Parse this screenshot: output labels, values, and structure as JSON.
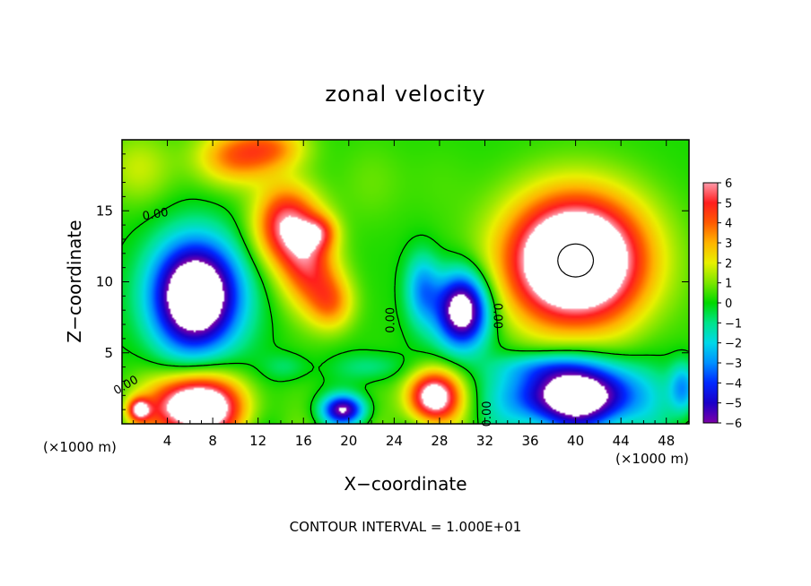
{
  "chart_data": {
    "type": "heatmap",
    "title": "zonal velocity",
    "xlabel": "X−coordinate",
    "ylabel": "Z−coordinate",
    "x_unit_left": "(×1000 m)",
    "x_unit_right": "(×1000 m)",
    "footer": "CONTOUR INTERVAL = 1.000E+01",
    "xlim": [
      0,
      50
    ],
    "ylim": [
      0,
      20
    ],
    "x_ticks": [
      4,
      8,
      12,
      16,
      20,
      24,
      28,
      32,
      36,
      40,
      44,
      48
    ],
    "x_tick_labels": [
      "4",
      "8",
      "12",
      "16",
      "20",
      "24",
      "28",
      "32",
      "36",
      "40",
      "44",
      "48"
    ],
    "y_ticks": [
      5,
      10,
      15
    ],
    "y_tick_labels": [
      "5",
      "10",
      "15"
    ],
    "colorbar": {
      "labels": [
        "6",
        "5",
        "4",
        "3",
        "2",
        "1",
        "0",
        "−1",
        "−2",
        "−3",
        "−4",
        "−5",
        "−6"
      ],
      "range": [
        -6,
        6
      ],
      "stops": [
        {
          "v": -6,
          "c": "#7c00a8"
        },
        {
          "v": -5,
          "c": "#1a00c8"
        },
        {
          "v": -4,
          "c": "#0028ff"
        },
        {
          "v": -3,
          "c": "#0090ff"
        },
        {
          "v": -2,
          "c": "#00d8e8"
        },
        {
          "v": -1,
          "c": "#00e48a"
        },
        {
          "v": 0,
          "c": "#00d800"
        },
        {
          "v": 1,
          "c": "#7ce600"
        },
        {
          "v": 2,
          "c": "#e8f000"
        },
        {
          "v": 3,
          "c": "#ffb400"
        },
        {
          "v": 4,
          "c": "#ff5a00"
        },
        {
          "v": 5,
          "c": "#ff1e1e"
        },
        {
          "v": 6,
          "c": "#ff9aaa"
        }
      ],
      "over_color": "#ffffff",
      "under_color": "#ffffff"
    },
    "contour_labels": [
      {
        "text": "0.00",
        "x": 3,
        "z": 14.5,
        "angle": -10
      },
      {
        "text": "0.00",
        "x": 0.5,
        "z": 2.5,
        "angle": -30
      },
      {
        "text": "0.00",
        "x": 24.0,
        "z": 7.3,
        "angle": -90
      },
      {
        "text": "0.00",
        "x": 32.8,
        "z": 7.6,
        "angle": 90
      },
      {
        "text": "0.00",
        "x": 32.5,
        "z": 0.7,
        "angle": -90
      }
    ],
    "features": [
      {
        "x": 1.5,
        "z": 18.0,
        "sx": 3.0,
        "sz": 2.5,
        "a": 1.5
      },
      {
        "x": 10.0,
        "z": 18.8,
        "sx": 3.5,
        "sz": 2.0,
        "a": 3.5
      },
      {
        "x": 13.5,
        "z": 19.5,
        "sx": 3.0,
        "sz": 1.5,
        "a": 2.5
      },
      {
        "x": 14.5,
        "z": 14.0,
        "sx": 2.8,
        "sz": 2.8,
        "a": 5.5
      },
      {
        "x": 16.5,
        "z": 11.0,
        "sx": 2.5,
        "sz": 3.0,
        "a": 4.0
      },
      {
        "x": 18.5,
        "z": 8.5,
        "sx": 2.0,
        "sz": 2.0,
        "a": 3.0
      },
      {
        "x": 17.5,
        "z": 13.5,
        "sx": 1.5,
        "sz": 1.2,
        "a": 2.5
      },
      {
        "x": 6.5,
        "z": 9.0,
        "sx": 3.8,
        "sz": 3.8,
        "a": -9.5
      },
      {
        "x": 6.5,
        "z": 1.2,
        "sx": 4.0,
        "sz": 2.2,
        "a": 9.0
      },
      {
        "x": 1.5,
        "z": 1.0,
        "sx": 1.0,
        "sz": 0.8,
        "a": 5.0
      },
      {
        "x": 27.5,
        "z": 1.9,
        "sx": 2.3,
        "sz": 1.8,
        "a": 7.5
      },
      {
        "x": 19.5,
        "z": 1.0,
        "sx": 1.8,
        "sz": 1.0,
        "a": -6.0
      },
      {
        "x": 30.0,
        "z": 8.0,
        "sx": 2.3,
        "sz": 2.6,
        "a": -8.0
      },
      {
        "x": 26.5,
        "z": 9.5,
        "sx": 1.5,
        "sz": 2.5,
        "a": -3.0
      },
      {
        "x": 40.0,
        "z": 11.5,
        "sx": 6.0,
        "sz": 4.5,
        "a": 10.5
      },
      {
        "x": 40.0,
        "z": 2.0,
        "sx": 5.5,
        "sz": 2.3,
        "a": -8.5
      },
      {
        "x": 49.5,
        "z": 2.5,
        "sx": 1.2,
        "sz": 1.8,
        "a": -3.0
      },
      {
        "x": 22.0,
        "z": 4.0,
        "sx": 3.0,
        "sz": 1.0,
        "a": -1.2
      },
      {
        "x": 14.5,
        "z": 4.0,
        "sx": 2.0,
        "sz": 1.0,
        "a": -1.0
      },
      {
        "x": 37.0,
        "z": 4.0,
        "sx": 4.0,
        "sz": 1.0,
        "a": -1.5
      },
      {
        "x": 22.0,
        "z": 17.0,
        "sx": 3.0,
        "sz": 3.0,
        "a": 0.6
      },
      {
        "x": 28.0,
        "z": 17.0,
        "sx": 3.0,
        "sz": 3.0,
        "a": 0.3
      }
    ]
  }
}
